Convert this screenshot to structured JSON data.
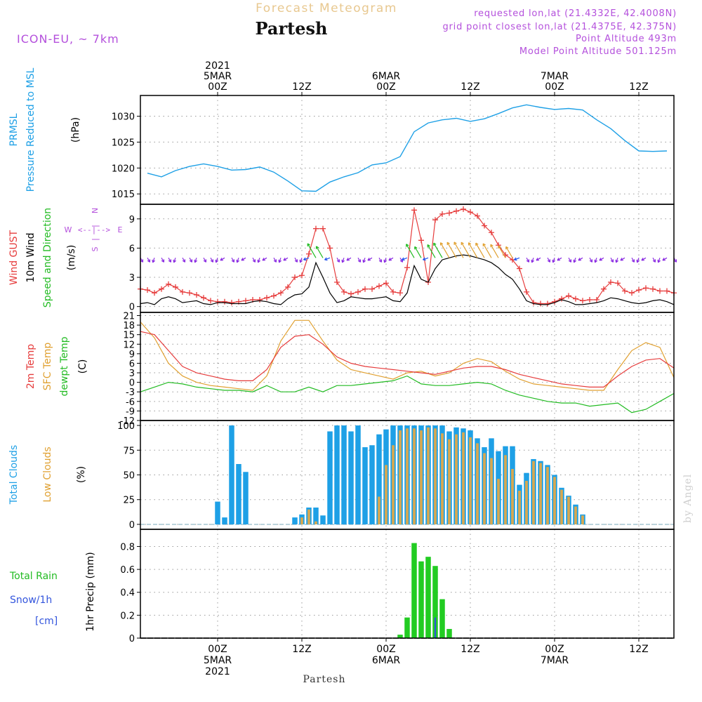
{
  "header": {
    "title": "Forecast Meteogram",
    "location": "Partesh",
    "model": "ICON-EU, ~ 7km",
    "requested": "requested lon,lat (21.4332E, 42.4008N)",
    "closest": "grid point closest lon,lat (21.4375E, 42.375N)",
    "point_alt": "Point Altitude 493m",
    "model_alt": "Model Point Altitude 501.125m",
    "footer_location": "Partesh",
    "watermark": "by Angel"
  },
  "time_axis": {
    "top_labels": [
      {
        "t": 0,
        "lines": [
          "2021",
          "5MAR",
          "00Z"
        ]
      },
      {
        "t": 12,
        "lines": [
          "12Z"
        ]
      },
      {
        "t": 24,
        "lines": [
          "6MAR",
          "00Z"
        ]
      },
      {
        "t": 36,
        "lines": [
          "12Z"
        ]
      },
      {
        "t": 48,
        "lines": [
          "7MAR",
          "00Z"
        ]
      },
      {
        "t": 60,
        "lines": [
          "12Z"
        ]
      }
    ],
    "bottom_labels": [
      {
        "t": 0,
        "lines": [
          "00Z",
          "5MAR",
          "2021"
        ]
      },
      {
        "t": 12,
        "lines": [
          "12Z"
        ]
      },
      {
        "t": 24,
        "lines": [
          "00Z",
          "6MAR"
        ]
      },
      {
        "t": 36,
        "lines": [
          "12Z"
        ]
      },
      {
        "t": 48,
        "lines": [
          "00Z",
          "7MAR"
        ]
      },
      {
        "t": 60,
        "lines": [
          "12Z"
        ]
      }
    ],
    "range_hours": [
      -11,
      65
    ]
  },
  "panels": {
    "pressure": {
      "labels": [
        {
          "text": "PRMSL",
          "color": "#1ea0e6"
        },
        {
          "text": "Pressure Reduced to MSL",
          "color": "#1ea0e6"
        },
        {
          "text": "(hPa)",
          "color": "#000000"
        }
      ],
      "yticks": [
        "1015",
        "1020",
        "1025",
        "1030"
      ]
    },
    "wind": {
      "labels": [
        {
          "text": "Wind GUST",
          "color": "#e63c3c"
        },
        {
          "text": "10m Wind",
          "color": "#000000"
        },
        {
          "text": "Speed and Direction",
          "color": "#22bb22"
        },
        {
          "text": "(m/s)",
          "color": "#000000"
        }
      ],
      "compass": {
        "n": "N",
        "s": "S",
        "w": "W",
        "e": "E",
        "center": "<--|-->"
      },
      "yticks": [
        "0",
        "3",
        "6",
        "9"
      ]
    },
    "temp": {
      "labels": [
        {
          "text": "2m Temp",
          "color": "#e63c3c"
        },
        {
          "text": "SFC Temp",
          "color": "#e0a030"
        },
        {
          "text": "dewpt Temp",
          "color": "#22bb22"
        },
        {
          "text": "(C)",
          "color": "#000000"
        }
      ],
      "yticks": [
        "-12",
        "-9",
        "-6",
        "-3",
        "0",
        "3",
        "6",
        "9",
        "12",
        "15",
        "18",
        "21"
      ]
    },
    "clouds": {
      "labels": [
        {
          "text": "Total Clouds",
          "color": "#1ea0e6"
        },
        {
          "text": "Low Clouds",
          "color": "#e0a030"
        },
        {
          "text": "(%)",
          "color": "#000000"
        }
      ],
      "yticks": [
        "0",
        "25",
        "50",
        "75",
        "100"
      ]
    },
    "precip": {
      "labels": [
        {
          "text": "Total  Rain",
          "color": "#22bb22"
        },
        {
          "text": "Snow/1h",
          "color": "#3355dd"
        },
        {
          "text": "[cm]",
          "color": "#3355dd"
        },
        {
          "text": "1hr Precip (mm)",
          "color": "#000000"
        }
      ],
      "yticks": [
        "0",
        "0.2",
        "0.4",
        "0.6",
        "0.8"
      ]
    }
  },
  "colors": {
    "pressure": "#1ea0e6",
    "gust": "#e63c3c",
    "wind": "#000000",
    "t2m": "#e63c3c",
    "tsfc": "#e0a030",
    "dewpt": "#22bb22",
    "total_clouds": "#1ea0e6",
    "low_clouds": "#d8a850",
    "rain": "#22cc22",
    "snow": "#3355dd",
    "title": "#e8c890",
    "meta": "#b450dc"
  },
  "chart_data": [
    {
      "type": "line",
      "ylabel": "PRMSL Pressure Reduced to MSL (hPa)",
      "ylim": [
        1013,
        1034
      ],
      "x_hours": [
        -10,
        -8,
        -6,
        -4,
        -2,
        0,
        2,
        4,
        6,
        8,
        10,
        12,
        14,
        16,
        18,
        20,
        22,
        24,
        26,
        28,
        30,
        32,
        34,
        36,
        38,
        40,
        42,
        44,
        46,
        48,
        50,
        52,
        54,
        56,
        58,
        60,
        62,
        64
      ],
      "series": [
        {
          "name": "PRMSL",
          "values": [
            1019,
            1018.3,
            1019.5,
            1020.3,
            1020.8,
            1020.3,
            1019.6,
            1019.7,
            1020.2,
            1019.2,
            1017.5,
            1015.6,
            1015.5,
            1017.3,
            1018.3,
            1019.1,
            1020.6,
            1021.0,
            1022.2,
            1027.0,
            1028.7,
            1029.3,
            1029.6,
            1029.0,
            1029.5,
            1030.5,
            1031.6,
            1032.2,
            1031.7,
            1031.3,
            1031.5,
            1031.2,
            1029.3,
            1027.6,
            1025.3,
            1023.3,
            1023.2,
            1023.3
          ]
        }
      ]
    },
    {
      "type": "line",
      "ylabel": "Wind GUST / 10m Wind (m/s)",
      "ylim": [
        -0.6,
        10.5
      ],
      "x_hours": [
        -11,
        -10,
        -9,
        -8,
        -7,
        -6,
        -5,
        -4,
        -3,
        -2,
        -1,
        0,
        1,
        2,
        3,
        4,
        5,
        6,
        7,
        8,
        9,
        10,
        11,
        12,
        13,
        14,
        15,
        16,
        17,
        18,
        19,
        20,
        21,
        22,
        23,
        24,
        25,
        26,
        27,
        28,
        29,
        30,
        31,
        32,
        33,
        34,
        35,
        36,
        37,
        38,
        39,
        40,
        41,
        42,
        43,
        44,
        45,
        46,
        47,
        48,
        49,
        50,
        51,
        52,
        53,
        54,
        55,
        56,
        57,
        58,
        59,
        60,
        61,
        62,
        63,
        64,
        65
      ],
      "series": [
        {
          "name": "Wind GUST",
          "values": [
            1.8,
            1.7,
            1.4,
            1.8,
            2.3,
            2.0,
            1.5,
            1.4,
            1.2,
            0.9,
            0.6,
            0.5,
            0.5,
            0.4,
            0.5,
            0.6,
            0.7,
            0.7,
            0.9,
            1.1,
            1.4,
            2.0,
            3.0,
            3.2,
            5.4,
            8.0,
            8.0,
            6.0,
            2.5,
            1.5,
            1.3,
            1.5,
            1.8,
            1.8,
            2.1,
            2.4,
            1.5,
            1.4,
            4.0,
            9.9,
            6.8,
            2.5,
            8.9,
            9.5,
            9.6,
            9.8,
            10.0,
            9.7,
            9.3,
            8.3,
            7.6,
            6.3,
            5.3,
            4.8,
            3.9,
            1.5,
            0.4,
            0.3,
            0.3,
            0.5,
            0.8,
            1.1,
            0.8,
            0.6,
            0.7,
            0.7,
            1.8,
            2.5,
            2.4,
            1.6,
            1.4,
            1.7,
            1.9,
            1.8,
            1.6,
            1.6,
            1.4
          ]
        },
        {
          "name": "10m Wind",
          "values": [
            0.3,
            0.4,
            0.2,
            0.8,
            1.0,
            0.8,
            0.4,
            0.5,
            0.6,
            0.3,
            0.2,
            0.4,
            0.4,
            0.3,
            0.3,
            0.3,
            0.5,
            0.6,
            0.5,
            0.3,
            0.2,
            0.8,
            1.2,
            1.3,
            2.0,
            4.5,
            3.0,
            1.4,
            0.4,
            0.6,
            1.0,
            0.9,
            0.8,
            0.8,
            0.9,
            1.0,
            0.6,
            0.5,
            1.4,
            4.2,
            2.8,
            2.5,
            3.9,
            4.8,
            5.0,
            5.2,
            5.3,
            5.2,
            5.0,
            4.8,
            4.5,
            4.0,
            3.3,
            2.8,
            1.8,
            0.6,
            0.3,
            0.2,
            0.2,
            0.4,
            0.7,
            0.5,
            0.2,
            0.2,
            0.3,
            0.4,
            0.6,
            0.9,
            0.8,
            0.6,
            0.4,
            0.3,
            0.4,
            0.6,
            0.7,
            0.5,
            0.2
          ]
        }
      ]
    },
    {
      "type": "line",
      "ylabel": "2m Temp / SFC Temp / dewpt Temp (C)",
      "ylim": [
        -12,
        22
      ],
      "x_hours": [
        -11,
        -9,
        -7,
        -5,
        -3,
        -1,
        1,
        3,
        5,
        7,
        9,
        11,
        13,
        15,
        17,
        19,
        21,
        23,
        25,
        27,
        29,
        31,
        33,
        35,
        37,
        39,
        41,
        43,
        45,
        47,
        49,
        51,
        53,
        55,
        57,
        59,
        61,
        63,
        65
      ],
      "series": [
        {
          "name": "2m Temp",
          "values": [
            16,
            15,
            10,
            5,
            3,
            2,
            1,
            0.5,
            0.5,
            4,
            11,
            14.5,
            15,
            12,
            8,
            6,
            5,
            4.5,
            4,
            3.5,
            3,
            2.5,
            3.5,
            4.5,
            5,
            5,
            4,
            2.5,
            1.5,
            0.5,
            -0.5,
            -1,
            -1.5,
            -1.5,
            2,
            5,
            7,
            7.5,
            4.5
          ]
        },
        {
          "name": "SFC Temp",
          "values": [
            19,
            14,
            6,
            2,
            0,
            -1,
            -1.5,
            -2,
            -2.5,
            2,
            13,
            19.5,
            19.5,
            13,
            7,
            4,
            3,
            2,
            1,
            3,
            3.5,
            2,
            3,
            6,
            7.5,
            6.5,
            3.5,
            1,
            -0.5,
            -1,
            -1.5,
            -2,
            -2.5,
            -2.5,
            4,
            10,
            12.5,
            11,
            1.5
          ]
        },
        {
          "name": "dewpt Temp",
          "values": [
            -3,
            -1.5,
            0,
            -0.5,
            -1.5,
            -2,
            -2.5,
            -2.5,
            -3,
            -1,
            -3,
            -3,
            -1.5,
            -3,
            -1,
            -1,
            -0.5,
            0,
            0.5,
            2,
            -0.5,
            -1,
            -1,
            -0.5,
            0,
            -0.5,
            -2.5,
            -4,
            -5,
            -6,
            -6.5,
            -6.5,
            -7.5,
            -7,
            -6.5,
            -9.5,
            -8.5,
            -6,
            -3.5
          ]
        }
      ]
    },
    {
      "type": "bar",
      "ylabel": "Total Clouds / Low Clouds (%)",
      "ylim": [
        -5,
        105
      ],
      "x_hours": [
        0,
        1,
        2,
        3,
        4,
        11,
        12,
        13,
        14,
        15,
        16,
        17,
        18,
        19,
        20,
        21,
        22,
        23,
        24,
        25,
        26,
        27,
        28,
        29,
        30,
        31,
        32,
        33,
        34,
        35,
        36,
        37,
        38,
        39,
        40,
        41,
        42,
        43,
        44,
        45,
        46,
        47,
        48,
        49,
        50,
        51,
        52,
        53,
        54
      ],
      "series": [
        {
          "name": "Total Clouds",
          "values": [
            23,
            7,
            100,
            61,
            53,
            7,
            10,
            17,
            17,
            9,
            94,
            100,
            100,
            94,
            100,
            78,
            80,
            91,
            96,
            100,
            100,
            100,
            100,
            100,
            100,
            100,
            100,
            94,
            98,
            97,
            95,
            87,
            78,
            87,
            74,
            79,
            79,
            40,
            52,
            66,
            64,
            60,
            50,
            37,
            29,
            20,
            10,
            0,
            0
          ]
        },
        {
          "name": "Low Clouds",
          "values": [
            0,
            0,
            0,
            0,
            0,
            0,
            7,
            15,
            3,
            0,
            0,
            0,
            0,
            0,
            0,
            0,
            0,
            28,
            60,
            80,
            95,
            97,
            97,
            95,
            98,
            97,
            92,
            86,
            91,
            93,
            88,
            82,
            72,
            67,
            46,
            70,
            56,
            34,
            44,
            64,
            62,
            58,
            48,
            35,
            28,
            18,
            9,
            0,
            0
          ]
        }
      ]
    },
    {
      "type": "bar",
      "ylabel": "1hr Precip (mm)",
      "ylim": [
        0,
        0.95
      ],
      "x_hours": [
        26,
        27,
        28,
        29,
        30,
        31,
        32,
        33
      ],
      "series": [
        {
          "name": "Total Rain",
          "values": [
            0.03,
            0.18,
            0.83,
            0.67,
            0.71,
            0.63,
            0.34,
            0.08
          ]
        },
        {
          "name": "Snow/1h",
          "values": [
            0,
            0,
            0,
            0,
            0,
            0.18,
            0,
            0
          ]
        }
      ]
    }
  ]
}
